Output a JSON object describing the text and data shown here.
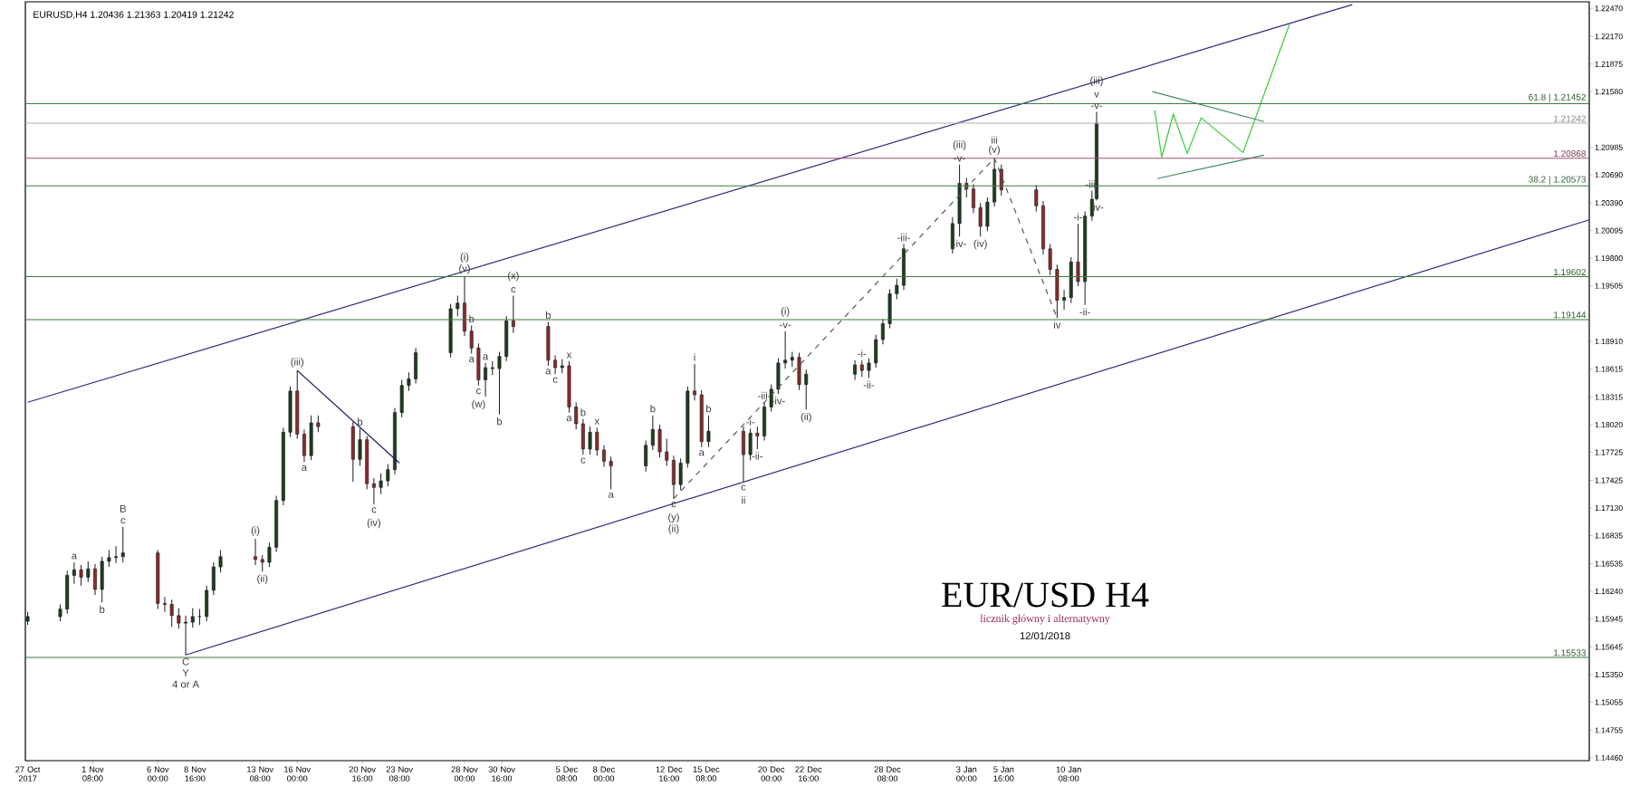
{
  "chart_data": {
    "type": "candlestick",
    "title": "EUR/USD H4",
    "subtitle": "licznik główny i alternatywny",
    "x": [
      "2017-10-27T16:00",
      "2017-10-30T00:00",
      "2017-10-30T12:00",
      "2017-10-31T00:00",
      "2017-10-31T12:00",
      "2017-11-01T00:00",
      "2017-11-01T12:00",
      "2017-11-02T00:00",
      "2017-11-02T12:00",
      "2017-11-03T00:00",
      "2017-11-03T12:00",
      "2017-11-06T00:00",
      "2017-11-06T12:00",
      "2017-11-07T00:00",
      "2017-11-07T12:00",
      "2017-11-08T00:00",
      "2017-11-08T12:00",
      "2017-11-09T00:00",
      "2017-11-09T12:00",
      "2017-11-10T00:00",
      "2017-11-10T12:00",
      "2017-11-13T00:00",
      "2017-11-13T12:00",
      "2017-11-14T00:00",
      "2017-11-14T12:00",
      "2017-11-15T00:00",
      "2017-11-15T12:00",
      "2017-11-16T00:00",
      "2017-11-16T12:00",
      "2017-11-17T00:00",
      "2017-11-17T12:00",
      "2017-11-20T00:00",
      "2017-11-20T12:00",
      "2017-11-21T00:00",
      "2017-11-21T12:00",
      "2017-11-22T00:00",
      "2017-11-22T12:00",
      "2017-11-23T00:00",
      "2017-11-23T12:00",
      "2017-11-24T00:00",
      "2017-11-24T12:00",
      "2017-11-27T00:00",
      "2017-11-27T12:00",
      "2017-11-28T00:00",
      "2017-11-28T12:00",
      "2017-11-29T00:00",
      "2017-11-29T12:00",
      "2017-11-30T00:00",
      "2017-11-30T12:00",
      "2017-12-01T00:00",
      "2017-12-01T12:00",
      "2017-12-04T00:00",
      "2017-12-04T12:00",
      "2017-12-05T00:00",
      "2017-12-05T12:00",
      "2017-12-06T00:00",
      "2017-12-06T12:00",
      "2017-12-07T00:00",
      "2017-12-07T12:00",
      "2017-12-08T00:00",
      "2017-12-08T12:00",
      "2017-12-11T00:00",
      "2017-12-11T12:00",
      "2017-12-12T00:00",
      "2017-12-12T12:00",
      "2017-12-13T00:00",
      "2017-12-13T12:00",
      "2017-12-14T00:00",
      "2017-12-14T12:00",
      "2017-12-15T00:00",
      "2017-12-15T12:00",
      "2017-12-18T00:00",
      "2017-12-18T12:00",
      "2017-12-19T00:00",
      "2017-12-19T12:00",
      "2017-12-20T00:00",
      "2017-12-20T12:00",
      "2017-12-21T00:00",
      "2017-12-21T12:00",
      "2017-12-22T00:00",
      "2017-12-22T12:00",
      "2017-12-26T00:00",
      "2017-12-26T12:00",
      "2017-12-27T00:00",
      "2017-12-27T12:00",
      "2017-12-28T00:00",
      "2017-12-28T12:00",
      "2017-12-29T00:00",
      "2017-12-29T12:00",
      "2018-01-02T00:00",
      "2018-01-02T12:00",
      "2018-01-03T00:00",
      "2018-01-03T12:00",
      "2018-01-04T00:00",
      "2018-01-04T12:00",
      "2018-01-05T00:00",
      "2018-01-05T12:00",
      "2018-01-08T00:00",
      "2018-01-08T12:00",
      "2018-01-09T00:00",
      "2018-01-09T12:00",
      "2018-01-10T00:00",
      "2018-01-10T12:00",
      "2018-01-11T00:00",
      "2018-01-11T12:00",
      "2018-01-12T00:00",
      "2018-01-12T08:00"
    ],
    "ohlc": [
      [
        1.1592,
        1.1602,
        1.1588,
        1.1597
      ],
      [
        1.1597,
        1.161,
        1.1592,
        1.1605
      ],
      [
        1.1605,
        1.1646,
        1.16,
        1.1641
      ],
      [
        1.1641,
        1.1655,
        1.1632,
        1.1647
      ],
      [
        1.1647,
        1.1652,
        1.163,
        1.1639
      ],
      [
        1.1639,
        1.1656,
        1.1634,
        1.1648
      ],
      [
        1.1648,
        1.1653,
        1.162,
        1.1626
      ],
      [
        1.1626,
        1.1661,
        1.1612,
        1.1656
      ],
      [
        1.1656,
        1.1668,
        1.165,
        1.166
      ],
      [
        1.166,
        1.1672,
        1.1654,
        1.1661
      ],
      [
        1.1661,
        1.1693,
        1.1655,
        1.1665
      ],
      [
        1.1665,
        1.1668,
        1.1605,
        1.1611
      ],
      [
        1.1611,
        1.1618,
        1.1602,
        1.161
      ],
      [
        1.161,
        1.1615,
        1.1586,
        1.1598
      ],
      [
        1.1598,
        1.1606,
        1.1584,
        1.159
      ],
      [
        1.159,
        1.1598,
        1.1556,
        1.1591
      ],
      [
        1.1591,
        1.1606,
        1.1585,
        1.1597
      ],
      [
        1.1597,
        1.1605,
        1.1588,
        1.1597
      ],
      [
        1.1597,
        1.163,
        1.1592,
        1.1625
      ],
      [
        1.1625,
        1.1655,
        1.162,
        1.165
      ],
      [
        1.165,
        1.1668,
        1.1644,
        1.1661
      ],
      [
        1.1661,
        1.168,
        1.1652,
        1.1658
      ],
      [
        1.1658,
        1.1663,
        1.1645,
        1.1655
      ],
      [
        1.1655,
        1.1676,
        1.165,
        1.1671
      ],
      [
        1.1671,
        1.1726,
        1.1666,
        1.1721
      ],
      [
        1.1721,
        1.1799,
        1.1716,
        1.1794
      ],
      [
        1.1794,
        1.1843,
        1.1789,
        1.1838
      ],
      [
        1.1838,
        1.186,
        1.1787,
        1.1792
      ],
      [
        1.1792,
        1.1797,
        1.1762,
        1.1769
      ],
      [
        1.1769,
        1.1812,
        1.1764,
        1.1804
      ],
      [
        1.1804,
        1.1812,
        1.1794,
        1.18
      ],
      [
        1.18,
        1.1805,
        1.1741,
        1.1765
      ],
      [
        1.1765,
        1.1798,
        1.1758,
        1.1786
      ],
      [
        1.1786,
        1.179,
        1.1733,
        1.1739
      ],
      [
        1.1739,
        1.1745,
        1.1717,
        1.1735
      ],
      [
        1.1735,
        1.175,
        1.1728,
        1.1742
      ],
      [
        1.1742,
        1.176,
        1.1736,
        1.1754
      ],
      [
        1.1754,
        1.182,
        1.1749,
        1.1815
      ],
      [
        1.1815,
        1.185,
        1.181,
        1.1844
      ],
      [
        1.1844,
        1.1858,
        1.1838,
        1.1851
      ],
      [
        1.1851,
        1.1884,
        1.1846,
        1.1879
      ],
      [
        1.1879,
        1.1931,
        1.1874,
        1.1926
      ],
      [
        1.1926,
        1.194,
        1.1918,
        1.1932
      ],
      [
        1.1932,
        1.196,
        1.1897,
        1.1902
      ],
      [
        1.1902,
        1.1908,
        1.1878,
        1.1884
      ],
      [
        1.1884,
        1.1889,
        1.1844,
        1.185
      ],
      [
        1.185,
        1.1868,
        1.1832,
        1.1863
      ],
      [
        1.1863,
        1.187,
        1.1855,
        1.1862
      ],
      [
        1.1862,
        1.188,
        1.1813,
        1.1875
      ],
      [
        1.1875,
        1.1918,
        1.187,
        1.1913
      ],
      [
        1.1913,
        1.194,
        1.19,
        1.1907
      ],
      [
        1.1907,
        1.1912,
        1.1865,
        1.1871
      ],
      [
        1.1871,
        1.1876,
        1.1856,
        1.1863
      ],
      [
        1.1863,
        1.1872,
        1.1857,
        1.1865
      ],
      [
        1.1865,
        1.187,
        1.1815,
        1.1821
      ],
      [
        1.1821,
        1.1826,
        1.1797,
        1.1803
      ],
      [
        1.1803,
        1.1808,
        1.177,
        1.1776
      ],
      [
        1.1776,
        1.18,
        1.177,
        1.1794
      ],
      [
        1.1794,
        1.1799,
        1.1769,
        1.1775
      ],
      [
        1.1775,
        1.178,
        1.1757,
        1.1763
      ],
      [
        1.1763,
        1.1768,
        1.1733,
        1.1758
      ],
      [
        1.1758,
        1.1785,
        1.1752,
        1.178
      ],
      [
        1.178,
        1.1812,
        1.1775,
        1.1797
      ],
      [
        1.1797,
        1.1802,
        1.1767,
        1.1773
      ],
      [
        1.1773,
        1.1787,
        1.1758,
        1.1764
      ],
      [
        1.1764,
        1.1769,
        1.1723,
        1.1738
      ],
      [
        1.1738,
        1.1766,
        1.1732,
        1.1761
      ],
      [
        1.1761,
        1.1843,
        1.1756,
        1.1838
      ],
      [
        1.1838,
        1.1867,
        1.1828,
        1.1834
      ],
      [
        1.1834,
        1.1839,
        1.1778,
        1.1784
      ],
      [
        1.1784,
        1.1812,
        1.1778,
        1.1795
      ],
      [
        1.1795,
        1.18,
        1.1741,
        1.177
      ],
      [
        1.177,
        1.1798,
        1.1764,
        1.1793
      ],
      [
        1.1793,
        1.18,
        1.1776,
        1.179
      ],
      [
        1.179,
        1.1826,
        1.1785,
        1.1821
      ],
      [
        1.1821,
        1.1845,
        1.1816,
        1.184
      ],
      [
        1.184,
        1.1873,
        1.1835,
        1.1868
      ],
      [
        1.1868,
        1.1902,
        1.1862,
        1.1871
      ],
      [
        1.1871,
        1.188,
        1.1864,
        1.1874
      ],
      [
        1.1874,
        1.1879,
        1.1839,
        1.1845
      ],
      [
        1.1845,
        1.1861,
        1.1818,
        1.1856
      ],
      [
        1.1856,
        1.1871,
        1.185,
        1.1866
      ],
      [
        1.1866,
        1.1871,
        1.1853,
        1.186
      ],
      [
        1.186,
        1.1873,
        1.1852,
        1.1868
      ],
      [
        1.1868,
        1.1898,
        1.1863,
        1.1893
      ],
      [
        1.1893,
        1.1915,
        1.1888,
        1.191
      ],
      [
        1.191,
        1.1947,
        1.1905,
        1.1942
      ],
      [
        1.1942,
        1.1958,
        1.1936,
        1.1951
      ],
      [
        1.1951,
        1.1995,
        1.1946,
        1.199
      ],
      [
        1.199,
        1.2024,
        1.1985,
        1.2017
      ],
      [
        1.2017,
        1.208,
        1.2003,
        1.206
      ],
      [
        1.206,
        1.2066,
        1.2045,
        1.2054
      ],
      [
        1.2054,
        1.2059,
        1.2028,
        1.2034
      ],
      [
        1.2034,
        1.2039,
        1.2003,
        1.2014
      ],
      [
        1.2014,
        1.2045,
        1.2009,
        1.204
      ],
      [
        1.204,
        1.2087,
        1.2035,
        1.2075
      ],
      [
        1.2075,
        1.208,
        1.2047,
        1.2053
      ],
      [
        1.2053,
        1.2058,
        1.203,
        1.2036
      ],
      [
        1.2036,
        1.2041,
        1.1984,
        1.199
      ],
      [
        1.199,
        1.1995,
        1.1962,
        1.1968
      ],
      [
        1.1968,
        1.1973,
        1.1916,
        1.1935
      ],
      [
        1.1935,
        1.1946,
        1.1925,
        1.1938
      ],
      [
        1.1938,
        1.1981,
        1.1932,
        1.1976
      ],
      [
        1.1976,
        1.2017,
        1.195,
        1.1955
      ],
      [
        1.1955,
        1.203,
        1.193,
        1.2025
      ],
      [
        1.2025,
        1.2052,
        1.202,
        1.2043
      ],
      [
        1.20436,
        1.21363,
        1.20419,
        1.21242
      ]
    ],
    "series": [
      {
        "type": "line",
        "color": "#2b2b80",
        "x": [
          "2017-10-27T16:00",
          "2018-01-30T16:00"
        ],
        "values": [
          1.1826,
          1.2251
        ]
      },
      {
        "type": "line",
        "color": "#2b2b80",
        "x": [
          "2017-11-08T00:00",
          "2018-02-16T16:00"
        ],
        "values": [
          1.1556,
          1.2021
        ]
      },
      {
        "type": "line",
        "color": "#101050",
        "x": [
          "2017-11-16T00:00",
          "2017-11-23T08:00"
        ],
        "values": [
          1.186,
          1.1761
        ]
      },
      {
        "type": "line",
        "color": "#555555",
        "line_style": "dashed",
        "x": [
          "2017-12-13T00:00",
          "2018-01-05T00:00",
          "2018-01-09T12:00"
        ],
        "values": [
          1.1723,
          1.2087,
          1.1916
        ]
      },
      {
        "type": "line",
        "color": "#33cc33",
        "x": [
          "2018-01-16T12:00",
          "2018-01-17T00:00",
          "2018-01-17T20:00",
          "2018-01-18T20:00",
          "2018-01-19T20:00",
          "2018-01-22T20:00",
          "2018-01-26T04:00"
        ],
        "values": [
          1.2138,
          1.2088,
          1.2134,
          1.2092,
          1.213,
          1.2093,
          1.223
        ]
      },
      {
        "type": "line",
        "color": "#3a8a5a",
        "x": [
          "2018-01-16T08:00",
          "2018-01-24T08:00"
        ],
        "values": [
          1.2158,
          1.2126
        ]
      },
      {
        "type": "line",
        "color": "#3a8a5a",
        "x": [
          "2018-01-16T16:00",
          "2018-01-24T08:00"
        ],
        "values": [
          1.2065,
          1.209
        ]
      }
    ],
    "xlim": [
      "2017-10-27T12:00",
      "2018-02-16T16:00"
    ],
    "xticks": [
      {
        "value": "2017-10-27T16:00",
        "label": "27 Oct 2017"
      },
      {
        "value": "2017-11-01T08:00",
        "label": "1 Nov 08:00"
      },
      {
        "value": "2017-11-06T00:00",
        "label": "6 Nov 00:00"
      },
      {
        "value": "2017-11-08T16:00",
        "label": "8 Nov 16:00"
      },
      {
        "value": "2017-11-13T08:00",
        "label": "13 Nov 08:00"
      },
      {
        "value": "2017-11-16T00:00",
        "label": "16 Nov 00:00"
      },
      {
        "value": "2017-11-20T16:00",
        "label": "20 Nov 16:00"
      },
      {
        "value": "2017-11-23T08:00",
        "label": "23 Nov 08:00"
      },
      {
        "value": "2017-11-28T00:00",
        "label": "28 Nov 00:00"
      },
      {
        "value": "2017-11-30T16:00",
        "label": "30 Nov 16:00"
      },
      {
        "value": "2017-12-05T08:00",
        "label": "5 Dec 08:00"
      },
      {
        "value": "2017-12-08T00:00",
        "label": "8 Dec 00:00"
      },
      {
        "value": "2017-12-12T16:00",
        "label": "12 Dec 16:00"
      },
      {
        "value": "2017-12-15T08:00",
        "label": "15 Dec 08:00"
      },
      {
        "value": "2017-12-20T00:00",
        "label": "20 Dec 00:00"
      },
      {
        "value": "2017-12-22T16:00",
        "label": "22 Dec 16:00"
      },
      {
        "value": "2017-12-28T08:00",
        "label": "28 Dec 08:00"
      },
      {
        "value": "2018-01-03T00:00",
        "label": "3 Jan 00:00"
      },
      {
        "value": "2018-01-05T16:00",
        "label": "5 Jan 16:00"
      },
      {
        "value": "2018-01-10T08:00",
        "label": "10 Jan 08:00"
      }
    ],
    "ylim": [
      1.1443,
      1.2254
    ],
    "yticks": [
      {
        "value": 1.2247,
        "label": "1.22470"
      },
      {
        "value": 1.2217,
        "label": "1.22170"
      },
      {
        "value": 1.21875,
        "label": "1.21875"
      },
      {
        "value": 1.2158,
        "label": "1.21580"
      },
      {
        "value": 1.20985,
        "label": "1.20985"
      },
      {
        "value": 1.2069,
        "label": "1.20690"
      },
      {
        "value": 1.2039,
        "label": "1.20390"
      },
      {
        "value": 1.20095,
        "label": "1.20095"
      },
      {
        "value": 1.198,
        "label": "1.19800"
      },
      {
        "value": 1.19505,
        "label": "1.19505"
      },
      {
        "value": 1.1891,
        "label": "1.18910"
      },
      {
        "value": 1.18615,
        "label": "1.18615"
      },
      {
        "value": 1.18315,
        "label": "1.18315"
      },
      {
        "value": 1.1802,
        "label": "1.18020"
      },
      {
        "value": 1.17725,
        "label": "1.17725"
      },
      {
        "value": 1.17425,
        "label": "1.17425"
      },
      {
        "value": 1.1713,
        "label": "1.17130"
      },
      {
        "value": 1.16835,
        "label": "1.16835"
      },
      {
        "value": 1.16535,
        "label": "1.16535"
      },
      {
        "value": 1.1624,
        "label": "1.16240"
      },
      {
        "value": 1.15945,
        "label": "1.15945"
      },
      {
        "value": 1.15645,
        "label": "1.15645"
      },
      {
        "value": 1.1535,
        "label": "1.15350"
      },
      {
        "value": 1.15055,
        "label": "1.15055"
      },
      {
        "value": 1.14755,
        "label": "1.14755"
      },
      {
        "value": 1.1446,
        "label": "1.14460"
      }
    ],
    "ref_lines": [
      {
        "axis": "y",
        "value": 1.21452,
        "label": "61.8 | 1.21452",
        "color": "#3c7a3c"
      },
      {
        "axis": "y",
        "value": 1.21242,
        "label": "1.21242",
        "color": "#b0b0b0"
      },
      {
        "axis": "y",
        "value": 1.20868,
        "label": "1.20868",
        "color": "#a05070"
      },
      {
        "axis": "y",
        "value": 1.20573,
        "label": "38.2 | 1.20573",
        "color": "#3c7a3c"
      },
      {
        "axis": "y",
        "value": 1.19602,
        "label": "1.19602",
        "color": "#3c7a3c"
      },
      {
        "axis": "y",
        "value": 1.19144,
        "label": "1.19144",
        "color": "#3c7a3c"
      },
      {
        "axis": "y",
        "value": 1.15533,
        "label": "1.15533",
        "color": "#3c7a3c"
      }
    ],
    "annotations": [
      "EURUSD,H4  1.20436 1.21363 1.20419 1.21242",
      "12/01/2018",
      {
        "text": "c",
        "x": "2017-11-03T12:00",
        "y": 1.1693
      },
      {
        "text": "B",
        "x": "2017-11-03T12:00",
        "y": 1.1693
      },
      {
        "text": "a",
        "x": "2017-10-31T00:00",
        "y": 1.1655
      },
      {
        "text": "b",
        "x": "2017-11-02T00:00",
        "y": 1.1612
      },
      {
        "text": "(i)",
        "x": "2017-11-13T00:00",
        "y": 1.168
      },
      {
        "text": "(ii)",
        "x": "2017-11-13T12:00",
        "y": 1.1645
      },
      {
        "text": "(iii)",
        "x": "2017-11-16T00:00",
        "y": 1.186
      },
      {
        "text": "a",
        "x": "2017-11-16T12:00",
        "y": 1.1762
      },
      {
        "text": "b",
        "x": "2017-11-20T12:00",
        "y": 1.1798
      },
      {
        "text": "c",
        "x": "2017-11-21T12:00",
        "y": 1.1717
      },
      {
        "text": "(iv)",
        "x": "2017-11-21T12:00",
        "y": 1.1717
      },
      {
        "text": "C",
        "x": "2017-11-08T00:00",
        "y": 1.1556
      },
      {
        "text": "Y",
        "x": "2017-11-08T00:00",
        "y": 1.1556
      },
      {
        "text": "4 or A",
        "x": "2017-11-08T00:00",
        "y": 1.1556
      },
      {
        "text": "(v)",
        "x": "2017-11-28T00:00",
        "y": 1.196
      },
      {
        "text": "(i)",
        "x": "2017-11-28T00:00",
        "y": 1.196
      },
      {
        "text": "a",
        "x": "2017-11-28T12:00",
        "y": 1.1878
      },
      {
        "text": "b",
        "x": "2017-11-28T12:00",
        "y": 1.1908
      },
      {
        "text": "c",
        "x": "2017-11-29T00:00",
        "y": 1.1844
      },
      {
        "text": "(w)",
        "x": "2017-11-29T00:00",
        "y": 1.1844
      },
      {
        "text": "a",
        "x": "2017-11-29T12:00",
        "y": 1.1868
      },
      {
        "text": "b",
        "x": "2017-11-30T12:00",
        "y": 1.1813
      },
      {
        "text": "c",
        "x": "2017-12-01T12:00",
        "y": 1.194
      },
      {
        "text": "(x)",
        "x": "2017-12-01T12:00",
        "y": 1.194
      },
      {
        "text": "b",
        "x": "2017-12-04T00:00",
        "y": 1.1912
      },
      {
        "text": "a",
        "x": "2017-12-04T00:00",
        "y": 1.1865
      },
      {
        "text": "c",
        "x": "2017-12-04T12:00",
        "y": 1.1856
      },
      {
        "text": "x",
        "x": "2017-12-05T12:00",
        "y": 1.187
      },
      {
        "text": "a",
        "x": "2017-12-05T12:00",
        "y": 1.1815
      },
      {
        "text": "b",
        "x": "2017-12-06T12:00",
        "y": 1.1808
      },
      {
        "text": "c",
        "x": "2017-12-06T12:00",
        "y": 1.177
      },
      {
        "text": "x",
        "x": "2017-12-07T12:00",
        "y": 1.1799
      },
      {
        "text": "a",
        "x": "2017-12-08T12:00",
        "y": 1.1733
      },
      {
        "text": "b",
        "x": "2017-12-11T12:00",
        "y": 1.1812
      },
      {
        "text": "c",
        "x": "2017-12-13T00:00",
        "y": 1.1723
      },
      {
        "text": "(y)",
        "x": "2017-12-13T00:00",
        "y": 1.1723
      },
      {
        "text": "(ii)",
        "x": "2017-12-13T00:00",
        "y": 1.1723
      },
      {
        "text": "i",
        "x": "2017-12-14T12:00",
        "y": 1.1867
      },
      {
        "text": "a",
        "x": "2017-12-15T00:00",
        "y": 1.1778
      },
      {
        "text": "b",
        "x": "2017-12-15T12:00",
        "y": 1.1812
      },
      {
        "text": "c",
        "x": "2017-12-18T00:00",
        "y": 1.1741
      },
      {
        "text": "ii",
        "x": "2017-12-18T00:00",
        "y": 1.1741
      },
      {
        "text": "-i-",
        "x": "2017-12-18T12:00",
        "y": 1.1798
      },
      {
        "text": "-ii-",
        "x": "2017-12-19T00:00",
        "y": 1.1776
      },
      {
        "text": "-iii-",
        "x": "2017-12-19T12:00",
        "y": 1.1826
      },
      {
        "text": "-iv-",
        "x": "2017-12-20T12:00",
        "y": 1.1835
      },
      {
        "text": "-v-",
        "x": "2017-12-21T00:00",
        "y": 1.1902
      },
      {
        "text": "(i)",
        "x": "2017-12-21T00:00",
        "y": 1.1902
      },
      {
        "text": "(ii)",
        "x": "2017-12-22T12:00",
        "y": 1.1818
      },
      {
        "text": "-i-",
        "x": "2017-12-26T12:00",
        "y": 1.1871
      },
      {
        "text": "-ii-",
        "x": "2017-12-27T00:00",
        "y": 1.1852
      },
      {
        "text": "-iii-",
        "x": "2017-12-29T12:00",
        "y": 1.1995
      },
      {
        "text": "-iv-",
        "x": "2018-01-02T12:00",
        "y": 1.2003
      },
      {
        "text": "-v-",
        "x": "2018-01-02T12:00",
        "y": 1.208
      },
      {
        "text": "(iii)",
        "x": "2018-01-02T12:00",
        "y": 1.208
      },
      {
        "text": "(iv)",
        "x": "2018-01-04T00:00",
        "y": 1.2003
      },
      {
        "text": "(v)",
        "x": "2018-01-05T00:00",
        "y": 1.2087
      },
      {
        "text": "iii",
        "x": "2018-01-05T00:00",
        "y": 1.2087
      },
      {
        "text": "iv",
        "x": "2018-01-09T12:00",
        "y": 1.1916
      },
      {
        "text": "-i-",
        "x": "2018-01-11T00:00",
        "y": 1.2017
      },
      {
        "text": "-ii-",
        "x": "2018-01-11T12:00",
        "y": 1.193
      },
      {
        "text": "-iii-",
        "x": "2018-01-12T00:00",
        "y": 1.2052
      },
      {
        "text": "-iv-",
        "x": "2018-01-12T08:00",
        "y": 1.20419
      },
      {
        "text": "-v-",
        "x": "2018-01-12T08:00",
        "y": 1.21363
      },
      {
        "text": "v",
        "x": "2018-01-12T08:00",
        "y": 1.21363
      },
      {
        "text": "(iii)",
        "x": "2018-01-12T08:00",
        "y": 1.21363
      }
    ]
  }
}
